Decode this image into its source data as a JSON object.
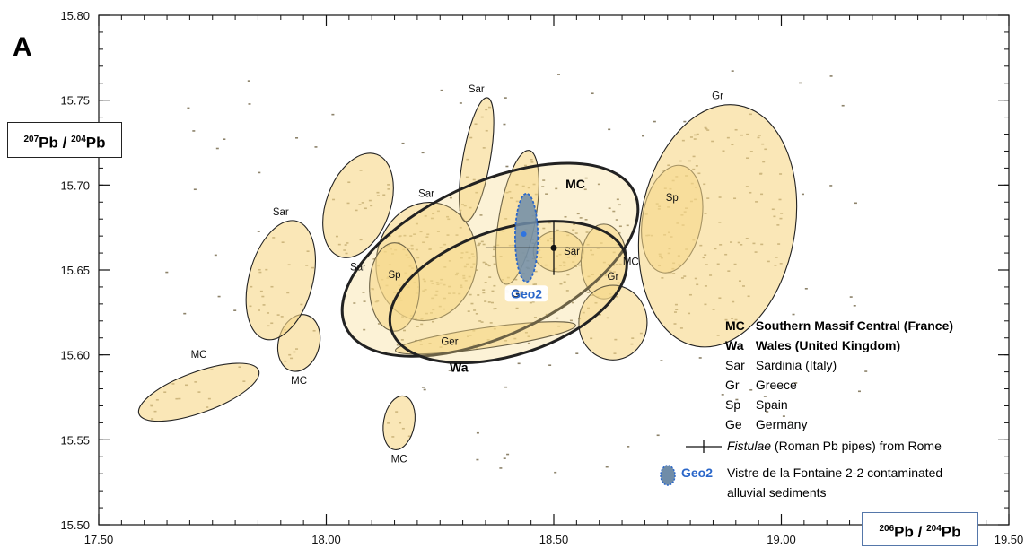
{
  "chart_data": {
    "type": "scatter",
    "panel_label": "A",
    "xlabel": {
      "a": "206",
      "b": "Pb / ",
      "c": "204",
      "d": "Pb"
    },
    "ylabel": {
      "a": "207",
      "b": "Pb / ",
      "c": "204",
      "d": "Pb"
    },
    "xlim": [
      17.5,
      19.5
    ],
    "ylim": [
      15.5,
      15.8
    ],
    "x_ticks": [
      "17.50",
      "18.00",
      "18.50",
      "19.00",
      "19.50"
    ],
    "y_ticks": [
      "15.50",
      "15.55",
      "15.60",
      "15.65",
      "15.70",
      "15.75",
      "15.80"
    ],
    "fields": [
      {
        "label": "MC",
        "cx": 17.72,
        "cy": 15.578,
        "rx": 0.14,
        "ry": 0.012,
        "rot": -20,
        "bold": false
      },
      {
        "label": "MC",
        "cx": 17.94,
        "cy": 15.607,
        "rx": 0.045,
        "ry": 0.017,
        "rot": 15,
        "bold": false
      },
      {
        "label": "Sar",
        "cx": 17.9,
        "cy": 15.644,
        "rx": 0.07,
        "ry": 0.036,
        "rot": 15,
        "bold": false
      },
      {
        "label": "Sar",
        "cx": 18.07,
        "cy": 15.688,
        "rx": 0.07,
        "ry": 0.032,
        "rot": 20,
        "bold": false
      },
      {
        "label": "Sar",
        "cx": 18.22,
        "cy": 15.655,
        "rx": 0.11,
        "ry": 0.035,
        "rot": 10,
        "bold": false
      },
      {
        "label": "Sp",
        "cx": 18.15,
        "cy": 15.64,
        "rx": 0.055,
        "ry": 0.026,
        "rot": 0,
        "bold": false
      },
      {
        "label": "Ger",
        "cx": 18.35,
        "cy": 15.61,
        "rx": 0.2,
        "ry": 0.006,
        "rot": -8,
        "bold": false
      },
      {
        "label": "MC",
        "cx": 18.16,
        "cy": 15.56,
        "rx": 0.034,
        "ry": 0.016,
        "rot": 10,
        "bold": false
      },
      {
        "label": "Sar",
        "cx": 18.33,
        "cy": 15.715,
        "rx": 0.03,
        "ry": 0.037,
        "rot": 10,
        "bold": false
      },
      {
        "label": "Gr",
        "cx": 18.42,
        "cy": 15.681,
        "rx": 0.04,
        "ry": 0.04,
        "rot": 10,
        "bold": false
      },
      {
        "label": "Sar",
        "cx": 18.51,
        "cy": 15.661,
        "rx": 0.055,
        "ry": 0.012,
        "rot": 0,
        "bold": false
      },
      {
        "label": "MC",
        "cx": 18.61,
        "cy": 15.655,
        "rx": 0.05,
        "ry": 0.022,
        "rot": 0,
        "bold": false
      },
      {
        "label": "Gr",
        "cx": 18.63,
        "cy": 15.619,
        "rx": 0.075,
        "ry": 0.022,
        "rot": 0,
        "bold": false
      },
      {
        "label": "Sp",
        "cx": 18.76,
        "cy": 15.68,
        "rx": 0.065,
        "ry": 0.032,
        "rot": 10,
        "bold": false
      },
      {
        "label": "Gr",
        "cx": 18.86,
        "cy": 15.676,
        "rx": 0.17,
        "ry": 0.072,
        "rot": 10,
        "bold": false
      },
      {
        "label": "MC",
        "cx": 18.36,
        "cy": 15.656,
        "rx": 0.35,
        "ry": 0.045,
        "rot": -25,
        "bold": true
      },
      {
        "label": "Wa",
        "cx": 18.4,
        "cy": 15.637,
        "rx": 0.27,
        "ry": 0.037,
        "rot": -18,
        "bold": true
      }
    ],
    "geo2": {
      "label": "Geo2",
      "x": 18.44,
      "y": 15.669,
      "rx": 0.025,
      "ry": 0.026
    },
    "fistulae": {
      "x": 18.5,
      "y": 15.663,
      "x_err": 0.15,
      "y_err": 0.016
    },
    "legend": [
      {
        "abbr": "MC",
        "text": "Southern Massif Central (France)",
        "bold": true
      },
      {
        "abbr": "Wa",
        "text": "Wales (United Kingdom)",
        "bold": true
      },
      {
        "abbr": "Sar",
        "text": "Sardinia (Italy)",
        "bold": false
      },
      {
        "abbr": "Gr",
        "text": "Greece",
        "bold": false
      },
      {
        "abbr": "Sp",
        "text": "Spain",
        "bold": false
      },
      {
        "abbr": "Ge",
        "text": "Germany",
        "bold": false
      }
    ],
    "legend_fistulae": {
      "italic": "Fistulae",
      "rest": " (Roman Pb pipes) from Rome"
    },
    "legend_geo2": {
      "label": "Geo2",
      "line1": "Vistre de la Fontaine 2-2 contaminated",
      "line2": "alluvial sediments"
    },
    "colors": {
      "field_fill": "#f7d98a",
      "field_stroke": "#222222",
      "points": "#8c826a",
      "geo2_fill": "#6f8ca8",
      "geo2_stroke": "#2b67c9",
      "geo2_text": "#2b67c9",
      "geo2_point": "#2f74e0"
    }
  }
}
